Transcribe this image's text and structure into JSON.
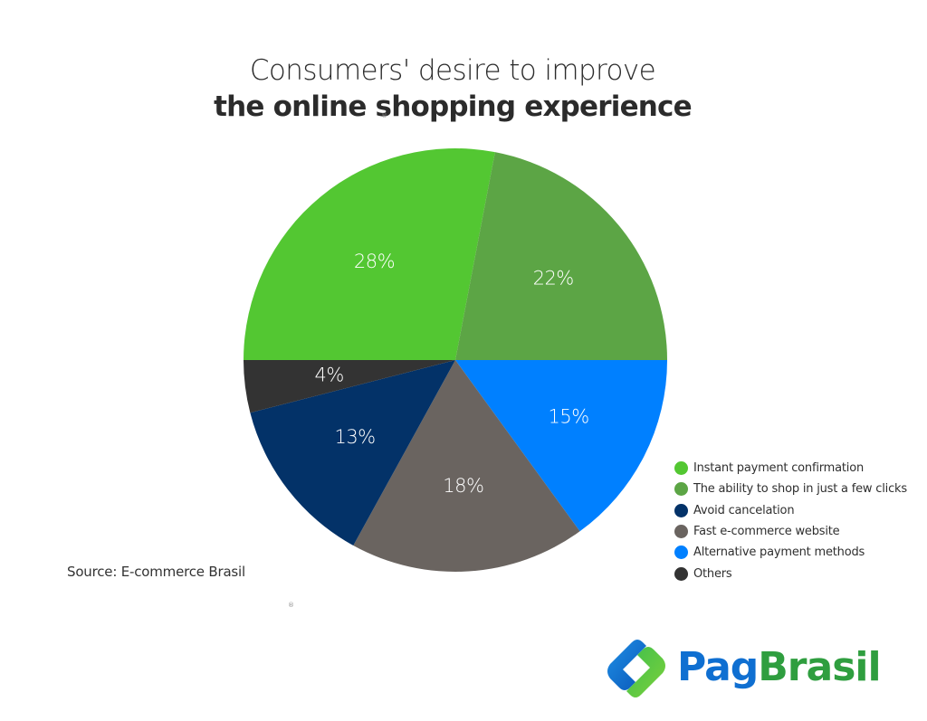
{
  "title": {
    "line1": "Consumers' desire to improve",
    "line2": "the online shopping experience"
  },
  "marks": {
    "registered": "®"
  },
  "colors": {
    "instant": "#53c732",
    "fewclicks": "#5ca545",
    "avoid": "#033268",
    "fast": "#6a6460",
    "alternative": "#0080ff",
    "others": "#333333"
  },
  "chart_data": {
    "type": "pie",
    "title": "Consumers' desire to improve the online shopping experience",
    "series": [
      {
        "name": "Instant payment confirmation",
        "value": 28,
        "label": "28%",
        "color": "#53c732"
      },
      {
        "name": "The ability to shop in just a few clicks",
        "value": 22,
        "label": "22%",
        "color": "#5ca545"
      },
      {
        "name": "Alternative payment methods",
        "value": 15,
        "label": "15%",
        "color": "#0080ff"
      },
      {
        "name": "Fast e-commerce website",
        "value": 18,
        "label": "18%",
        "color": "#6a6460"
      },
      {
        "name": "Avoid cancelation",
        "value": 13,
        "label": "13%",
        "color": "#033268"
      },
      {
        "name": "Others",
        "value": 4,
        "label": "4%",
        "color": "#333333"
      }
    ],
    "legend": {
      "placement": "bottom-right",
      "items": [
        {
          "label": "Instant payment confirmation",
          "color": "#53c732"
        },
        {
          "label": "The ability to shop in just a few clicks",
          "color": "#5ca545"
        },
        {
          "label": "Avoid cancelation",
          "color": "#033268"
        },
        {
          "label": "Fast e-commerce website",
          "color": "#6a6460"
        },
        {
          "label": "Alternative payment methods",
          "color": "#0080ff"
        },
        {
          "label": "Others",
          "color": "#333333"
        }
      ]
    }
  },
  "source": "Source:  E-commerce Brasil",
  "brand": {
    "part1": "Pag",
    "part2": "Brasil"
  }
}
